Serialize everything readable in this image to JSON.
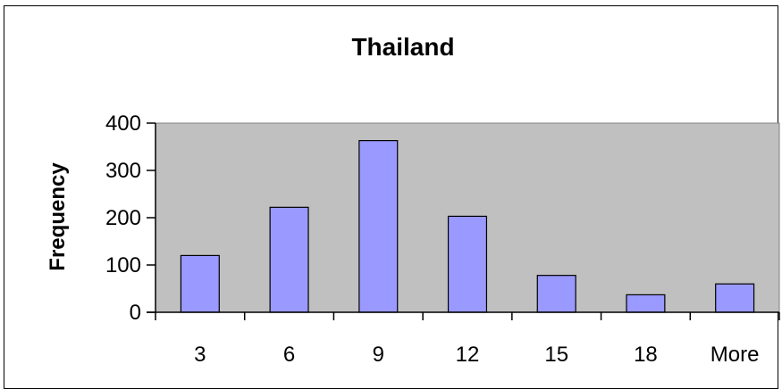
{
  "chart_data": {
    "type": "bar",
    "title": "Thailand",
    "xlabel": "",
    "ylabel": "Frequency",
    "categories": [
      "3",
      "6",
      "9",
      "12",
      "15",
      "18",
      "More"
    ],
    "values": [
      120,
      222,
      363,
      203,
      78,
      37,
      60
    ],
    "ylim": [
      0,
      400
    ],
    "yticks": [
      0,
      100,
      200,
      300,
      400
    ],
    "grid": false,
    "legend": "none",
    "colors": {
      "bar_fill": "#9999ff",
      "bar_stroke": "#000000",
      "plot_background": "#c0c0c0",
      "axis": "#000000"
    }
  }
}
